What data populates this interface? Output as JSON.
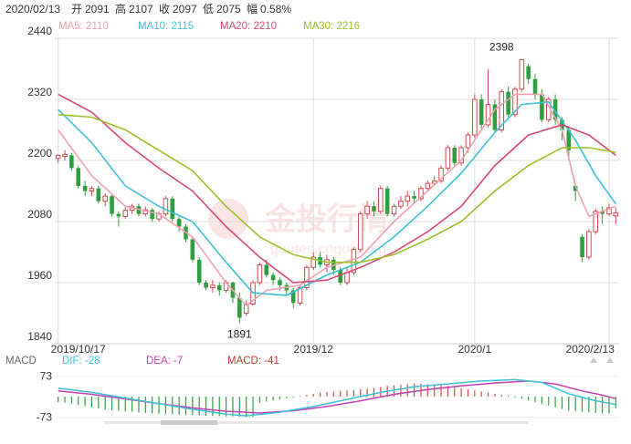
{
  "header": {
    "date": "2020/02/13",
    "open_label": "开",
    "open": "2091",
    "high_label": "高",
    "high": "2107",
    "close_label": "收",
    "close": "2097",
    "low_label": "低",
    "low": "2075",
    "amp_label": "幅",
    "amp": "0.58%"
  },
  "ma_legend": [
    {
      "name": "MA5",
      "value": "2110",
      "color": "#f0a0b0"
    },
    {
      "name": "MA10",
      "value": "2115",
      "color": "#3cc0d6"
    },
    {
      "name": "MA20",
      "value": "2210",
      "color": "#d84878"
    },
    {
      "name": "MA30",
      "value": "2216",
      "color": "#9cbf2a"
    }
  ],
  "macd_legend": [
    {
      "name": "MACD",
      "value": "",
      "color": "#666666"
    },
    {
      "name": "DIF",
      "value": "-28",
      "color": "#3cc0d6"
    },
    {
      "name": "DEA",
      "value": "-7",
      "color": "#c03fb0"
    },
    {
      "name": "MACD",
      "value": "-41",
      "color": "#c0392b"
    }
  ],
  "watermark": {
    "cn": "金投行情",
    "en": "quotes.cngold.org"
  },
  "colors": {
    "up": "#d14b4b",
    "down": "#2e9e3e",
    "grid": "#dddddd",
    "axis_text": "#333333"
  },
  "chart_data": [
    {
      "type": "candlestick",
      "y_ticks": [
        2440,
        2320,
        2200,
        2080,
        1960,
        1840
      ],
      "ylim": [
        1840,
        2440
      ],
      "x_tick_labels": [
        {
          "label": "2019/10/17",
          "index": 0
        },
        {
          "label": "2019/12",
          "index": 38
        },
        {
          "label": "2020/1",
          "index": 62
        },
        {
          "label": "2020/2/13",
          "index": 82
        }
      ],
      "annotations": [
        {
          "text": "2398",
          "index": 66,
          "value": 2398
        },
        {
          "text": "1891",
          "index": 27,
          "value": 1891
        }
      ],
      "candles": [
        [
          2204,
          2210,
          2195,
          2212
        ],
        [
          2208,
          2212,
          2200,
          2220
        ],
        [
          2210,
          2185,
          2180,
          2215
        ],
        [
          2185,
          2150,
          2145,
          2190
        ],
        [
          2150,
          2140,
          2130,
          2160
        ],
        [
          2140,
          2145,
          2130,
          2150
        ],
        [
          2145,
          2120,
          2115,
          2150
        ],
        [
          2120,
          2130,
          2110,
          2135
        ],
        [
          2130,
          2095,
          2090,
          2135
        ],
        [
          2095,
          2090,
          2070,
          2100
        ],
        [
          2090,
          2102,
          2085,
          2108
        ],
        [
          2102,
          2110,
          2095,
          2115
        ],
        [
          2110,
          2095,
          2090,
          2115
        ],
        [
          2095,
          2103,
          2090,
          2110
        ],
        [
          2103,
          2085,
          2080,
          2107
        ],
        [
          2085,
          2095,
          2080,
          2100
        ],
        [
          2095,
          2125,
          2090,
          2130
        ],
        [
          2125,
          2085,
          2080,
          2130
        ],
        [
          2085,
          2070,
          2060,
          2090
        ],
        [
          2070,
          2045,
          2040,
          2075
        ],
        [
          2045,
          2005,
          2000,
          2050
        ],
        [
          2005,
          1960,
          1955,
          2010
        ],
        [
          1960,
          1950,
          1945,
          1965
        ],
        [
          1950,
          1955,
          1940,
          1965
        ],
        [
          1955,
          1945,
          1935,
          1960
        ],
        [
          1945,
          1960,
          1940,
          1965
        ],
        [
          1960,
          1930,
          1920,
          1962
        ],
        [
          1930,
          1891,
          1880,
          1940
        ],
        [
          1900,
          1918,
          1895,
          1925
        ],
        [
          1918,
          1960,
          1915,
          1965
        ],
        [
          1960,
          1995,
          1955,
          2000
        ],
        [
          1995,
          1975,
          1970,
          2005
        ],
        [
          1975,
          1965,
          1955,
          1980
        ],
        [
          1965,
          1955,
          1945,
          1970
        ],
        [
          1955,
          1945,
          1935,
          1960
        ],
        [
          1945,
          1920,
          1910,
          1950
        ],
        [
          1920,
          1950,
          1915,
          1955
        ],
        [
          1950,
          1990,
          1945,
          1995
        ],
        [
          1990,
          2010,
          1985,
          2020
        ],
        [
          2010,
          1995,
          1990,
          2020
        ],
        [
          1995,
          2005,
          1980,
          2015
        ],
        [
          2005,
          1985,
          1975,
          2010
        ],
        [
          1985,
          1960,
          1955,
          1990
        ],
        [
          1960,
          1980,
          1955,
          1990
        ],
        [
          1980,
          2025,
          1975,
          2030
        ],
        [
          2025,
          2095,
          2020,
          2100
        ],
        [
          2095,
          2110,
          2085,
          2120
        ],
        [
          2110,
          2100,
          2090,
          2120
        ],
        [
          2100,
          2145,
          2095,
          2150
        ],
        [
          2145,
          2095,
          2090,
          2150
        ],
        [
          2095,
          2110,
          2090,
          2115
        ],
        [
          2110,
          2120,
          2105,
          2130
        ],
        [
          2120,
          2130,
          2110,
          2140
        ],
        [
          2130,
          2125,
          2115,
          2140
        ],
        [
          2125,
          2145,
          2120,
          2150
        ],
        [
          2145,
          2155,
          2140,
          2160
        ],
        [
          2155,
          2160,
          2150,
          2170
        ],
        [
          2160,
          2185,
          2155,
          2190
        ],
        [
          2185,
          2225,
          2180,
          2230
        ],
        [
          2225,
          2195,
          2190,
          2230
        ],
        [
          2195,
          2225,
          2190,
          2230
        ],
        [
          2225,
          2250,
          2215,
          2255
        ],
        [
          2250,
          2320,
          2245,
          2330
        ],
        [
          2320,
          2270,
          2260,
          2330
        ],
        [
          2270,
          2310,
          2265,
          2380
        ],
        [
          2310,
          2260,
          2255,
          2320
        ],
        [
          2260,
          2335,
          2255,
          2340
        ],
        [
          2335,
          2290,
          2285,
          2345
        ],
        [
          2290,
          2340,
          2285,
          2345
        ],
        [
          2340,
          2398,
          2335,
          2400
        ],
        [
          2385,
          2360,
          2350,
          2390
        ],
        [
          2360,
          2330,
          2320,
          2370
        ],
        [
          2330,
          2280,
          2275,
          2340
        ],
        [
          2280,
          2320,
          2275,
          2325
        ],
        [
          2320,
          2280,
          2270,
          2330
        ],
        [
          2280,
          2260,
          2240,
          2285
        ],
        [
          2260,
          2220,
          2200,
          2265
        ],
        [
          2150,
          2140,
          2120,
          2150
        ],
        [
          2050,
          2010,
          2000,
          2055
        ],
        [
          2010,
          2060,
          2005,
          2065
        ],
        [
          2060,
          2100,
          2055,
          2105
        ],
        [
          2100,
          2095,
          2075,
          2110
        ],
        [
          2095,
          2107,
          2090,
          2115
        ],
        [
          2091,
          2097,
          2075,
          2107
        ]
      ],
      "ma_series": [
        {
          "name": "MA5",
          "color": "#f0a0b0",
          "values": [
            [
              0,
              2260
            ],
            [
              5,
              2170
            ],
            [
              10,
              2110
            ],
            [
              15,
              2095
            ],
            [
              20,
              2050
            ],
            [
              25,
              1960
            ],
            [
              28,
              1915
            ],
            [
              31,
              1945
            ],
            [
              36,
              1955
            ],
            [
              40,
              1990
            ],
            [
              45,
              2010
            ],
            [
              50,
              2080
            ],
            [
              55,
              2140
            ],
            [
              60,
              2200
            ],
            [
              65,
              2300
            ],
            [
              68,
              2330
            ],
            [
              72,
              2330
            ],
            [
              75,
              2260
            ],
            [
              77,
              2150
            ],
            [
              79,
              2090
            ],
            [
              83,
              2110
            ]
          ]
        },
        {
          "name": "MA10",
          "color": "#3cc0d6",
          "values": [
            [
              0,
              2300
            ],
            [
              5,
              2235
            ],
            [
              10,
              2150
            ],
            [
              15,
              2110
            ],
            [
              20,
              2080
            ],
            [
              25,
              2000
            ],
            [
              29,
              1940
            ],
            [
              34,
              1935
            ],
            [
              40,
              1975
            ],
            [
              45,
              2000
            ],
            [
              50,
              2050
            ],
            [
              55,
              2110
            ],
            [
              60,
              2175
            ],
            [
              65,
              2255
            ],
            [
              69,
              2310
            ],
            [
              73,
              2315
            ],
            [
              77,
              2240
            ],
            [
              80,
              2170
            ],
            [
              83,
              2115
            ]
          ]
        },
        {
          "name": "MA20",
          "color": "#d84878",
          "values": [
            [
              0,
              2330
            ],
            [
              5,
              2295
            ],
            [
              10,
              2235
            ],
            [
              15,
              2185
            ],
            [
              20,
              2140
            ],
            [
              25,
              2070
            ],
            [
              30,
              2010
            ],
            [
              35,
              1960
            ],
            [
              40,
              1965
            ],
            [
              45,
              1990
            ],
            [
              50,
              2020
            ],
            [
              55,
              2060
            ],
            [
              60,
              2110
            ],
            [
              65,
              2190
            ],
            [
              70,
              2250
            ],
            [
              75,
              2270
            ],
            [
              79,
              2250
            ],
            [
              83,
              2210
            ]
          ]
        },
        {
          "name": "MA30",
          "color": "#9cbf2a",
          "values": [
            [
              0,
              2290
            ],
            [
              5,
              2285
            ],
            [
              10,
              2260
            ],
            [
              15,
              2220
            ],
            [
              20,
              2180
            ],
            [
              25,
              2110
            ],
            [
              30,
              2050
            ],
            [
              35,
              2015
            ],
            [
              40,
              2000
            ],
            [
              45,
              2000
            ],
            [
              50,
              2015
            ],
            [
              55,
              2045
            ],
            [
              60,
              2080
            ],
            [
              65,
              2140
            ],
            [
              70,
              2190
            ],
            [
              75,
              2225
            ],
            [
              79,
              2225
            ],
            [
              83,
              2216
            ]
          ]
        }
      ]
    },
    {
      "type": "macd",
      "y_ticks": [
        73,
        -73
      ],
      "ylim": [
        -100,
        100
      ],
      "histogram": [
        -20,
        -22,
        -26,
        -30,
        -34,
        -38,
        -42,
        -46,
        -48,
        -50,
        -52,
        -54,
        -56,
        -58,
        -60,
        -61,
        -62,
        -63,
        -64,
        -65,
        -66,
        -67,
        -68,
        -68,
        -69,
        -70,
        -70,
        -71,
        -72,
        -72,
        -22,
        -18,
        -14,
        -10,
        -6,
        -4,
        2,
        6,
        10,
        14,
        16,
        18,
        20,
        22,
        24,
        26,
        28,
        30,
        34,
        38,
        40,
        42,
        44,
        46,
        46,
        44,
        42,
        40,
        38,
        34,
        30,
        26,
        22,
        18,
        14,
        10,
        6,
        4,
        -4,
        -8,
        -14,
        -20,
        -26,
        -32,
        -38,
        -44,
        -50,
        -52,
        -54,
        -56,
        -58,
        -60,
        -60,
        -41
      ],
      "dif": [
        [
          0,
          30
        ],
        [
          5,
          15
        ],
        [
          10,
          -5
        ],
        [
          15,
          -25
        ],
        [
          20,
          -45
        ],
        [
          25,
          -62
        ],
        [
          28,
          -68
        ],
        [
          33,
          -55
        ],
        [
          38,
          -35
        ],
        [
          43,
          -10
        ],
        [
          48,
          15
        ],
        [
          53,
          35
        ],
        [
          58,
          45
        ],
        [
          63,
          55
        ],
        [
          68,
          60
        ],
        [
          72,
          50
        ],
        [
          76,
          10
        ],
        [
          80,
          -15
        ],
        [
          83,
          -28
        ]
      ],
      "dea": [
        [
          0,
          20
        ],
        [
          5,
          8
        ],
        [
          10,
          -8
        ],
        [
          15,
          -25
        ],
        [
          20,
          -40
        ],
        [
          25,
          -52
        ],
        [
          30,
          -58
        ],
        [
          35,
          -50
        ],
        [
          40,
          -35
        ],
        [
          45,
          -15
        ],
        [
          50,
          8
        ],
        [
          55,
          25
        ],
        [
          60,
          38
        ],
        [
          65,
          48
        ],
        [
          70,
          55
        ],
        [
          74,
          45
        ],
        [
          78,
          20
        ],
        [
          81,
          5
        ],
        [
          83,
          -7
        ]
      ]
    }
  ]
}
